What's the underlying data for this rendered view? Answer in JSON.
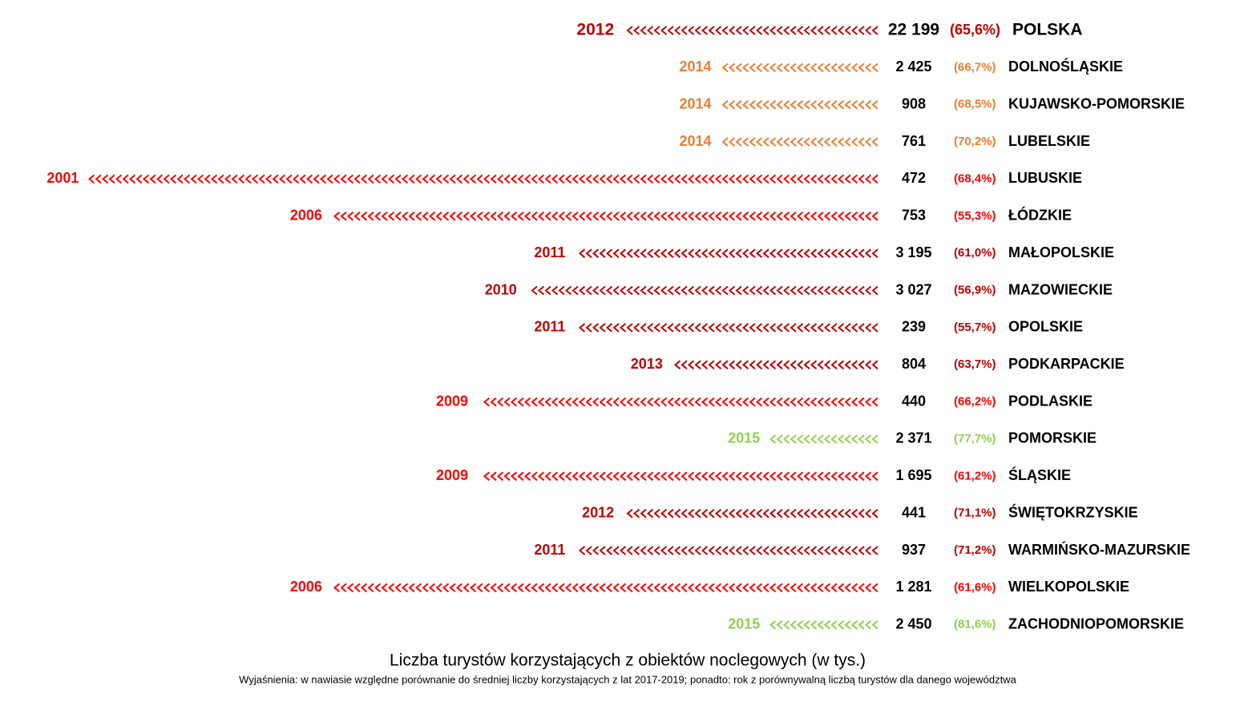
{
  "chart_data": {
    "type": "arrow",
    "title": "Liczba turystów korzystających z obiektów noclegowych (w tys.)",
    "note": "Wyjaśnienia: w nawiasie względne porównanie do średniej liczby korzystających z lat 2017-2019; ponadto: rok z porównywalną liczbą turystów dla danego województwa",
    "categories": [
      "POLSKA",
      "DOLNOŚLĄSKIE",
      "KUJAWSKO-POMORSKIE",
      "LUBELSKIE",
      "LUBUSKIE",
      "ŁÓDZKIE",
      "MAŁOPOLSKIE",
      "MAZOWIECKIE",
      "OPOLSKIE",
      "PODKARPACKIE",
      "PODLASKIE",
      "POMORSKIE",
      "ŚLĄSKIE",
      "ŚWIĘTOKRZYSKIE",
      "WARMIŃSKO-MAZURSKIE",
      "WIELKOPOLSKIE",
      "ZACHODNIOPOMORSKIE"
    ],
    "years": [
      2012,
      2014,
      2014,
      2014,
      2001,
      2006,
      2011,
      2010,
      2011,
      2013,
      2009,
      2015,
      2009,
      2012,
      2011,
      2006,
      2015
    ],
    "values": [
      22199,
      2425,
      908,
      761,
      472,
      753,
      3195,
      3027,
      239,
      804,
      440,
      2371,
      1695,
      441,
      937,
      1281,
      2450
    ],
    "value_labels": [
      "22 199",
      "2 425",
      "908",
      "761",
      "472",
      "753",
      "3 195",
      "3 027",
      "239",
      "804",
      "440",
      "2 371",
      "1 695",
      "441",
      "937",
      "1 281",
      "2 450"
    ],
    "shares": [
      65.6,
      66.7,
      68.5,
      70.2,
      68.4,
      55.3,
      61.0,
      56.9,
      55.7,
      63.7,
      66.2,
      77.7,
      61.2,
      71.1,
      71.2,
      61.6,
      81.6
    ],
    "share_labels": [
      "(65,6%)",
      "(66,7%)",
      "(68,5%)",
      "(70,2%)",
      "(68,4%)",
      "(55,3%)",
      "(61,0%)",
      "(56,9%)",
      "(55,7%)",
      "(63,7%)",
      "(66,2%)",
      "(77,7%)",
      "(61,2%)",
      "(71,1%)",
      "(71,2%)",
      "(61,6%)",
      "(81,6%)"
    ],
    "colors": [
      "#c00000",
      "#ed7d31",
      "#ed7d31",
      "#ed7d31",
      "#ff0000",
      "#ff0000",
      "#c00000",
      "#c00000",
      "#c00000",
      "#c00000",
      "#ff0000",
      "#92d050",
      "#ff0000",
      "#c00000",
      "#c00000",
      "#ff0000",
      "#92d050"
    ]
  }
}
